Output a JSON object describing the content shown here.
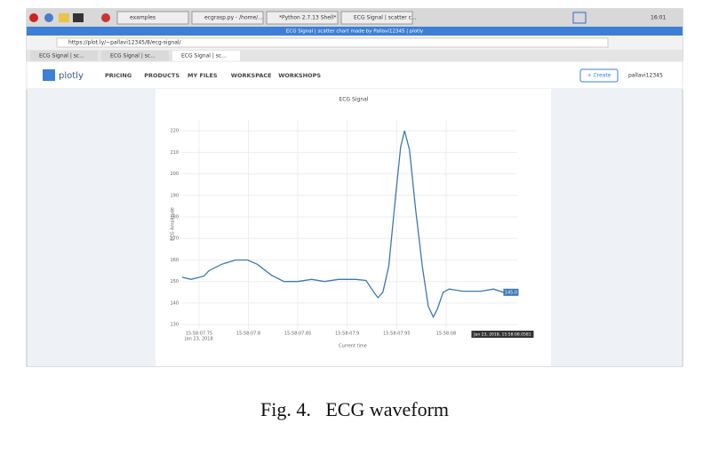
{
  "screenshot": {
    "taskbar": {
      "items": [
        "examples",
        "ecgrasp.py - /home/...",
        "*Python 2.7.13 Shell*",
        "ECG Signal | scatter c..."
      ],
      "clock": "16:01"
    },
    "window_title": "ECG Signal | scatter chart made by Pallavi12345 | plotly",
    "address": "https://plot.ly/~pallavi12345/8/ecg-signal/",
    "tabs": [
      "ECG Signal | sc...",
      "ECG Signal | sc...",
      "ECG Signal | sc..."
    ],
    "nav": {
      "logo": "plotly",
      "links": [
        "PRICING",
        "PRODUCTS",
        "MY FILES",
        "WORKSPACE",
        "WORKSHOPS"
      ],
      "create": "+ Create",
      "user": "pallavi12345"
    }
  },
  "chart_data": {
    "type": "line",
    "title": "ECG Signal",
    "xlabel": "Current time",
    "ylabel": "ECG Amplitude",
    "color": "#3c78b4",
    "x": [
      7.733,
      7.742,
      7.755,
      7.76,
      7.773,
      7.787,
      7.799,
      7.809,
      7.823,
      7.836,
      7.85,
      7.864,
      7.877,
      7.891,
      7.909,
      7.919,
      7.927,
      7.931,
      7.936,
      7.942,
      7.949,
      7.954,
      7.958,
      7.963,
      7.969,
      7.976,
      7.982,
      7.987,
      7.991,
      7.997,
      8.003,
      8.017,
      8.035,
      8.048,
      8.058,
      8.071
    ],
    "values": [
      152,
      151,
      152.5,
      155,
      158,
      160,
      160,
      158,
      153,
      150,
      150,
      151,
      150,
      151,
      151,
      150.5,
      145,
      142.5,
      145,
      157,
      190,
      212.5,
      220,
      211,
      184,
      157,
      138.5,
      133.5,
      137,
      145,
      146.5,
      145.5,
      145.5,
      146.5,
      145,
      146
    ],
    "xlim": [
      7.733,
      8.072
    ],
    "ylim": [
      128,
      225
    ],
    "xticks": [
      {
        "value": 7.75,
        "label": "15:58:07.75"
      },
      {
        "value": 7.8,
        "label": "15:58:07.8"
      },
      {
        "value": 7.85,
        "label": "15:58:07.85"
      },
      {
        "value": 7.9,
        "label": "15:58:07.9"
      },
      {
        "value": 7.95,
        "label": "15:58:07.95"
      },
      {
        "value": 8,
        "label": "15:58:08"
      }
    ],
    "xtick_sublabel": "Jan 23, 2018",
    "yticks": [
      130,
      140,
      150,
      160,
      170,
      180,
      190,
      200,
      210,
      220
    ],
    "grid": true,
    "hover": {
      "index": 34,
      "label": "145.0",
      "x_label": "Jan 23, 2018, 15:58:08.0581"
    }
  },
  "caption": "Fig. 4.   ECG waveform"
}
